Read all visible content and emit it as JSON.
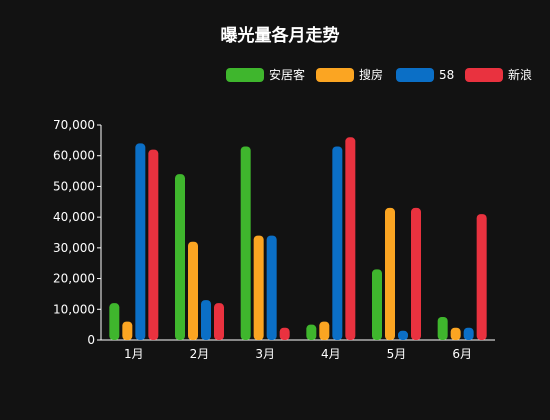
{
  "chart_data": {
    "type": "bar",
    "title": "曝光量各月走势",
    "categories": [
      "1月",
      "2月",
      "3月",
      "4月",
      "5月",
      "6月"
    ],
    "series": [
      {
        "name": "安居客",
        "color": "#3fb62d",
        "values": [
          12000,
          54000,
          63000,
          5000,
          23000,
          7500
        ]
      },
      {
        "name": "搜房",
        "color": "#fba522",
        "values": [
          6000,
          32000,
          34000,
          6000,
          43000,
          4000
        ]
      },
      {
        "name": "58",
        "color": "#0b6fc6",
        "values": [
          64000,
          13000,
          34000,
          63000,
          3000,
          4000
        ]
      },
      {
        "name": "新浪",
        "color": "#e9323f",
        "values": [
          62000,
          12000,
          4000,
          66000,
          43000,
          41000
        ]
      }
    ],
    "ylim": [
      0,
      70000
    ],
    "yticks": [
      0,
      10000,
      20000,
      30000,
      40000,
      50000,
      60000,
      70000
    ],
    "ytick_labels": [
      "0",
      "10,000",
      "20,000",
      "30,000",
      "40,000",
      "50,000",
      "60,000",
      "70,000"
    ],
    "legend_position": "top-right",
    "grid": false
  }
}
